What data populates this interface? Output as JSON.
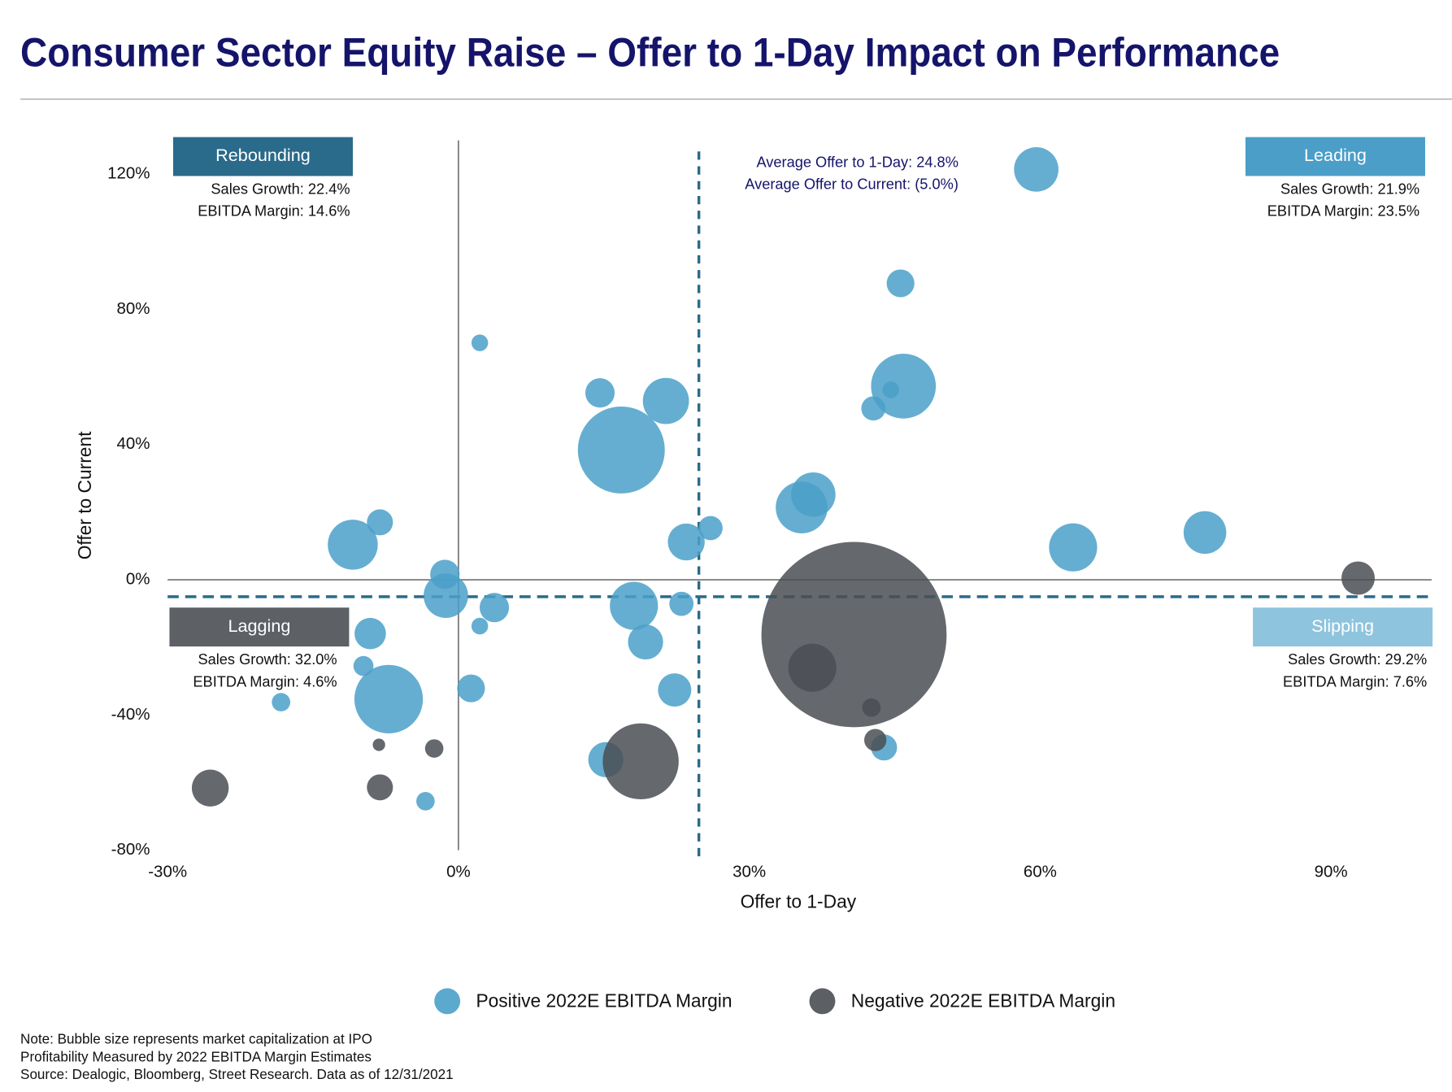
{
  "chart_data": {
    "type": "bubble",
    "title": "Consumer Sector Equity Raise – Offer to 1-Day Impact on Performance",
    "x_label": "Offer to 1-Day",
    "y_label": "Offer to Current",
    "xlim": [
      -30,
      100
    ],
    "ylim": [
      -80,
      130
    ],
    "xticks": [
      {
        "value": -30,
        "label": "-30%"
      },
      {
        "value": 0,
        "label": "0%"
      },
      {
        "value": 30,
        "label": "30%"
      },
      {
        "value": 60,
        "label": "60%"
      },
      {
        "value": 90,
        "label": "90%"
      }
    ],
    "yticks": [
      {
        "value": -80,
        "label": "-80%"
      },
      {
        "value": -40,
        "label": "-40%"
      },
      {
        "value": 0,
        "label": "0%"
      },
      {
        "value": 40,
        "label": "40%"
      },
      {
        "value": 80,
        "label": "80%"
      },
      {
        "value": 120,
        "label": "120%"
      }
    ],
    "average_x": 24.8,
    "average_y": -5.0,
    "average_x_label": "Average Offer to 1-Day: 24.8%",
    "average_y_label": "Average Offer to Current: (5.0%)",
    "average_color": "#2a6a8a",
    "quadrants": [
      {
        "label": "Rebounding",
        "sales_growth": "Sales Growth: 22.4%",
        "ebitda_margin": "EBITDA Margin: 14.6%",
        "color": "#2a6a8a"
      },
      {
        "label": "Leading",
        "sales_growth": "Sales Growth: 21.9%",
        "ebitda_margin": "EBITDA Margin: 23.5%",
        "color": "#4a9ec8"
      },
      {
        "label": "Lagging",
        "sales_growth": "Sales Growth: 32.0%",
        "ebitda_margin": "EBITDA Margin: 4.6%",
        "color": "#5d6166"
      },
      {
        "label": "Slipping",
        "sales_growth": "Sales Growth: 29.2%",
        "ebitda_margin": "EBITDA Margin: 7.6%",
        "color": "#8ec4de"
      }
    ],
    "series": [
      {
        "name": "Positive 2022E EBITDA Margin",
        "color": "#4aa0c9",
        "x": [
          59.6,
          45.6,
          2.2,
          45.9,
          44.6,
          42.8,
          14.6,
          21.4,
          16.8,
          36.6,
          35.4,
          26.0,
          23.5,
          -10.9,
          -8.1,
          63.4,
          77.0,
          -1.4,
          -1.3,
          3.7,
          18.1,
          23.0,
          2.2,
          -9.1,
          19.3,
          -9.8,
          -7.2,
          1.3,
          -18.3,
          22.3,
          15.2,
          43.9,
          -3.4
        ],
        "values": [
          121.4,
          87.7,
          70.1,
          57.3,
          56.2,
          50.7,
          55.3,
          52.9,
          38.4,
          25.2,
          21.4,
          15.3,
          11.2,
          10.4,
          17.0,
          9.6,
          14.0,
          1.6,
          -4.7,
          -8.2,
          -7.7,
          -7.1,
          -13.7,
          -15.9,
          -18.4,
          -25.5,
          -35.3,
          -32.1,
          -36.2,
          -32.6,
          -53.2,
          -49.6,
          -65.5
        ],
        "sizes": [
          64,
          25,
          9,
          136,
          9,
          19,
          28,
          69,
          245,
          64,
          87,
          19,
          44,
          81,
          22,
          75,
          59,
          28,
          64,
          28,
          75,
          19,
          9,
          32,
          40,
          13,
          152,
          25,
          11,
          36,
          40,
          22,
          11
        ]
      },
      {
        "name": "Negative 2022E EBITDA Margin",
        "color": "#4a4e53",
        "x": [
          92.8,
          40.8,
          36.5,
          42.6,
          43.0,
          18.8,
          -2.5,
          -8.2,
          -8.1,
          -25.6
        ],
        "values": [
          0.5,
          -16.2,
          -26.0,
          -37.8,
          -47.4,
          -53.7,
          -49.9,
          -48.8,
          -61.4,
          -61.6
        ],
        "sizes": [
          36,
          1111,
          75,
          11,
          16,
          187,
          11,
          5,
          22,
          44
        ]
      }
    ],
    "notes": [
      "Note: Bubble size represents market capitalization at IPO",
      "Profitability Measured by 2022 EBITDA Margin Estimates",
      "Source: Dealogic, Bloomberg, Street Research. Data as of 12/31/2021"
    ]
  }
}
